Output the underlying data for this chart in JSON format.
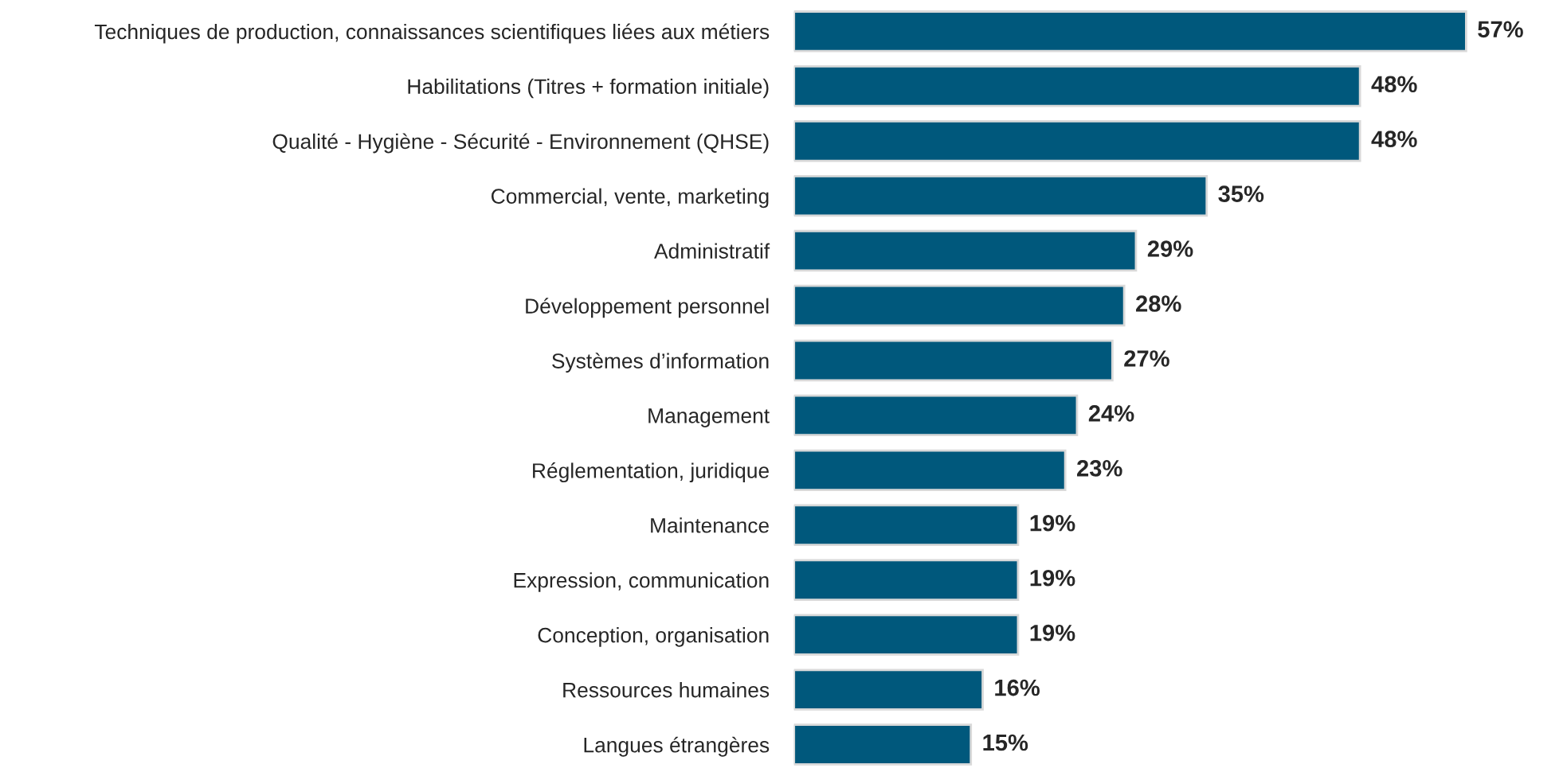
{
  "chart_data": {
    "type": "bar",
    "orientation": "horizontal",
    "data_labels": true,
    "color": "#00587c",
    "categories": [
      "Techniques de production, connaissances scientifiques liées aux métiers",
      "Habilitations (Titres + formation initiale)",
      "Qualité - Hygiène - Sécurité - Environnement (QHSE)",
      "Commercial, vente, marketing",
      "Administratif",
      "Développement personnel",
      "Systèmes d’information",
      "Management",
      "Réglementation, juridique",
      "Maintenance",
      "Expression, communication",
      "Conception, organisation",
      "Ressources humaines",
      "Langues étrangères"
    ],
    "values": [
      57,
      48,
      48,
      35,
      29,
      28,
      27,
      24,
      23,
      19,
      19,
      19,
      16,
      15
    ],
    "value_labels": [
      "57%",
      "48%",
      "48%",
      "35%",
      "29%",
      "28%",
      "27%",
      "24%",
      "23%",
      "19%",
      "19%",
      "19%",
      "16%",
      "15%"
    ]
  }
}
